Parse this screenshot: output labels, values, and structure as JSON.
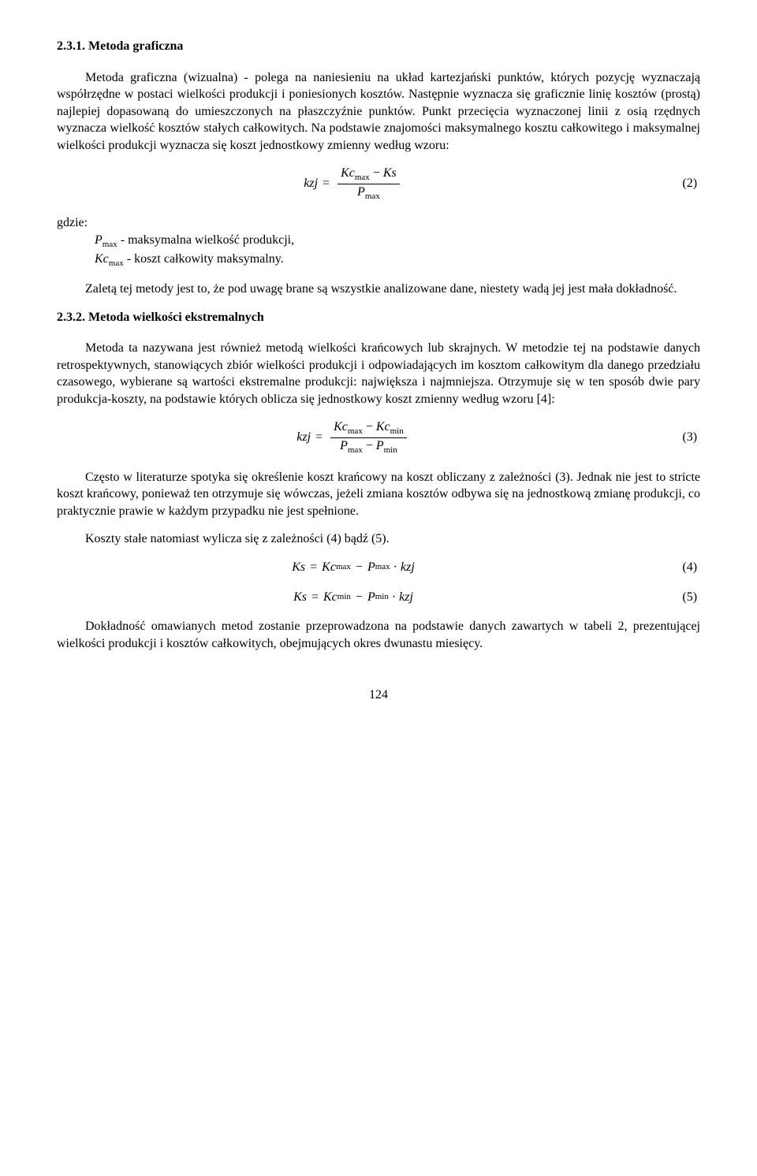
{
  "section1": {
    "heading": "2.3.1. Metoda graficzna",
    "p1": "Metoda graficzna (wizualna) - polega na naniesieniu na układ kartezjański punktów, których pozycję wyznaczają współrzędne w postaci wielkości produkcji i poniesionych kosztów. Następnie wyznacza się graficznie linię kosztów (prostą) najlepiej dopasowaną do umieszczonych na płaszczyźnie punktów. Punkt przecięcia wyznaczonej linii z osią rzędnych wyznacza wielkość kosztów stałych całkowitych. Na podstawie znajomości maksymalnego kosztu całkowitego i maksymalnej wielkości produkcji wyznacza się koszt jednostkowy zmienny według wzoru:"
  },
  "formula2": {
    "lhs": "kzj",
    "num_a": "Kc",
    "num_a_sub": "max",
    "num_op": "−",
    "num_b": "Ks",
    "den_a": "P",
    "den_a_sub": "max",
    "num": "(2)"
  },
  "gdzie": {
    "label": "gdzie:",
    "line1_sym": "P",
    "line1_sub": "max",
    "line1_txt": " - maksymalna wielkość produkcji,",
    "line2_sym": "Kc",
    "line2_sub": "max",
    "line2_txt": " - koszt całkowity maksymalny."
  },
  "section1_p2": "Zaletą tej metody jest to, że pod uwagę brane są wszystkie analizowane dane, niestety wadą jej jest mała dokładność.",
  "section2": {
    "heading": "2.3.2. Metoda wielkości ekstremalnych",
    "p1": "Metoda ta nazywana jest również metodą wielkości krańcowych lub skrajnych. W metodzie tej na podstawie danych retrospektywnych, stanowiących zbiór wielkości produkcji i odpowiadających im kosztom całkowitym dla danego przedziału czasowego, wybierane są wartości ekstremalne produkcji: największa i najmniejsza. Otrzymuje się w ten sposób dwie pary produkcja-koszty, na podstawie których oblicza się jednostkowy koszt zmienny według wzoru [4]:"
  },
  "formula3": {
    "lhs": "kzj",
    "num_a": "Kc",
    "num_a_sub": "max",
    "num_op": "−",
    "num_b": "Kc",
    "num_b_sub": "min",
    "den_a": "P",
    "den_a_sub": "max",
    "den_op": "−",
    "den_b": "P",
    "den_b_sub": "min",
    "num": "(3)"
  },
  "section2_p2": "Często w literaturze spotyka się określenie koszt krańcowy na koszt obliczany z zależności (3). Jednak nie jest to stricte koszt krańcowy, ponieważ ten otrzymuje się wówczas, jeżeli zmiana kosztów odbywa się na jednostkową zmianę produkcji, co praktycznie prawie w każdym przypadku nie jest spełnione.",
  "section2_p3": "Koszty stałe natomiast wylicza się z zależności (4) bądź (5).",
  "formula4": {
    "lhs": "Ks",
    "a": "Kc",
    "a_sub": "max",
    "op": "−",
    "b": "P",
    "b_sub": "max",
    "dot": "·",
    "c": "kzj",
    "num": "(4)"
  },
  "formula5": {
    "lhs": "Ks",
    "a": "Kc",
    "a_sub": "min",
    "op": "−",
    "b": "P",
    "b_sub": "min",
    "dot": "·",
    "c": "kzj",
    "num": "(5)"
  },
  "section2_p4": "Dokładność omawianych metod zostanie przeprowadzona na podstawie danych zawartych w tabeli 2, prezentującej wielkości produkcji i kosztów całkowitych, obejmujących okres dwunastu miesięcy.",
  "page_number": "124",
  "equals": "="
}
